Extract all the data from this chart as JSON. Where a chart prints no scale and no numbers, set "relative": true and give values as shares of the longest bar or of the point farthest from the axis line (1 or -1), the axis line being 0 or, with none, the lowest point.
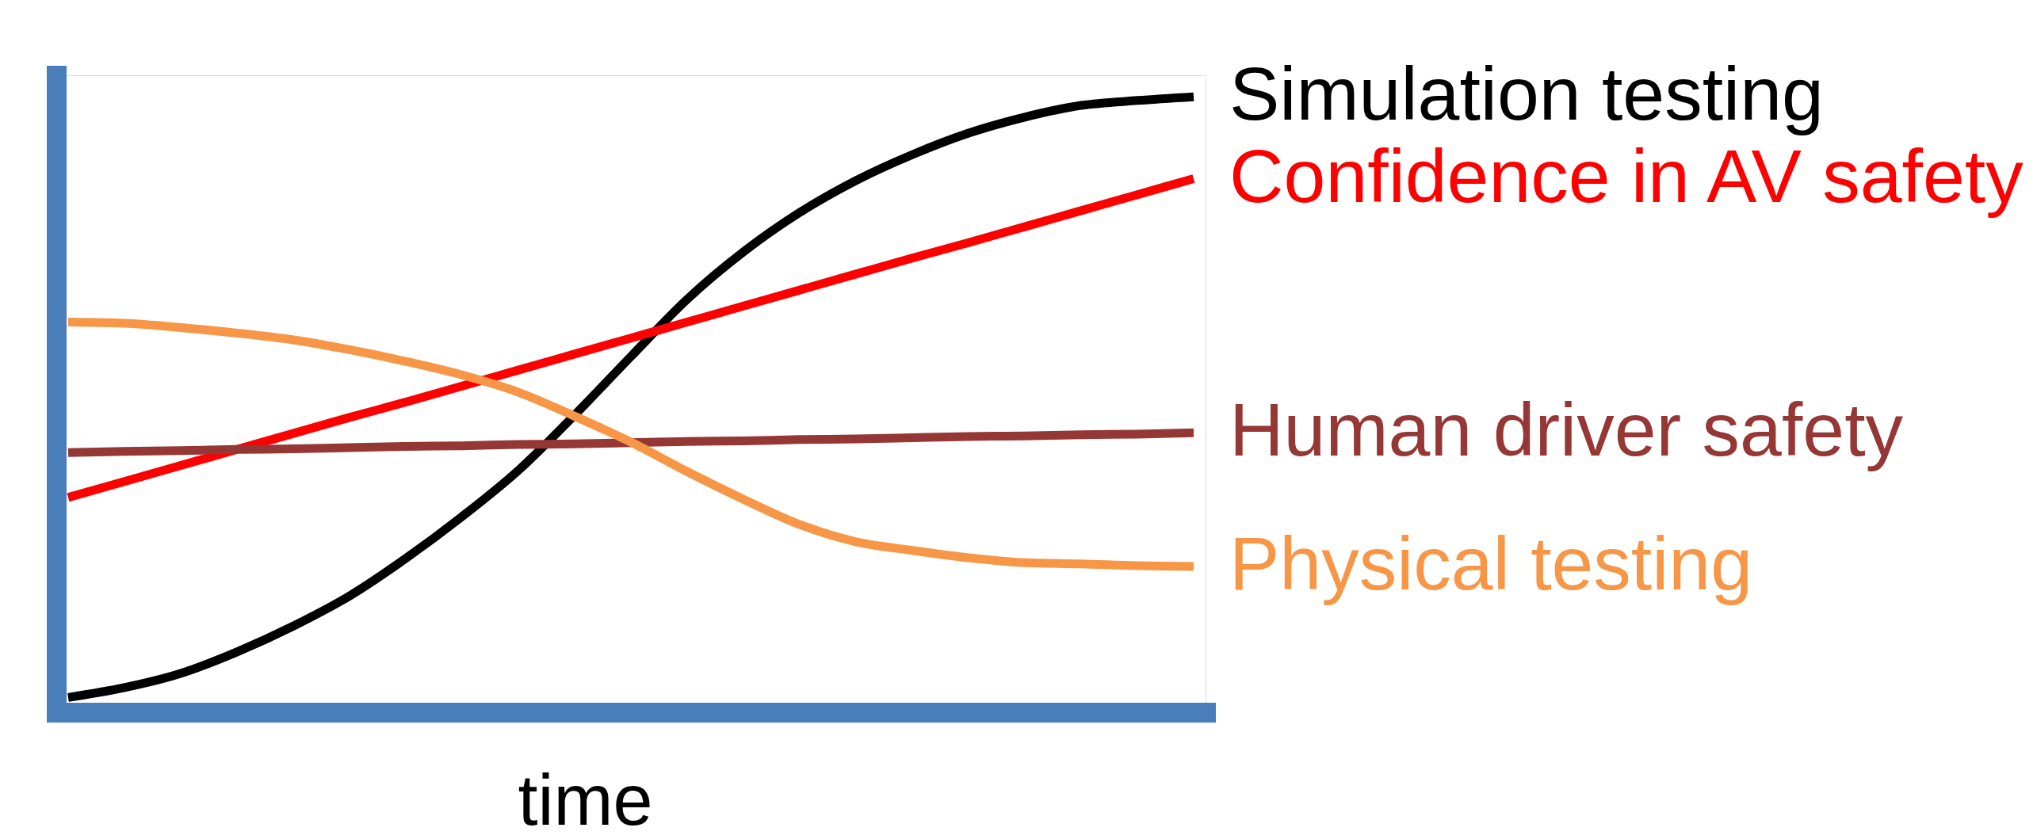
{
  "chart_data": {
    "type": "line",
    "relative": true,
    "xlabel": "time",
    "line_style": "solid",
    "categories": [
      null,
      null,
      null,
      null,
      null,
      null,
      null,
      null,
      null,
      null,
      null,
      null,
      null,
      null,
      null,
      null,
      null,
      null,
      null,
      null,
      null
    ],
    "series": [
      {
        "name": "Simulation testing",
        "color": "#000000",
        "values": [
          0.024,
          0.04,
          0.063,
          0.098,
          0.14,
          0.189,
          0.25,
          0.318,
          0.393,
          0.483,
          0.578,
          0.671,
          0.748,
          0.812,
          0.864,
          0.906,
          0.941,
          0.967,
          0.986,
          0.994,
          1.0
        ]
      },
      {
        "name": "Confidence in AV safety",
        "color": "#ff0000",
        "values": [
          0.349,
          0.375,
          0.401,
          0.427,
          0.453,
          0.479,
          0.504,
          0.53,
          0.556,
          0.582,
          0.608,
          0.634,
          0.66,
          0.686,
          0.712,
          0.738,
          0.763,
          0.789,
          0.815,
          0.841,
          0.867
        ]
      },
      {
        "name": "Human driver safety",
        "color": "#953735",
        "values": [
          0.422,
          0.424,
          0.425,
          0.427,
          0.428,
          0.43,
          0.432,
          0.433,
          0.435,
          0.436,
          0.438,
          0.44,
          0.441,
          0.443,
          0.444,
          0.446,
          0.448,
          0.449,
          0.451,
          0.452,
          0.454
        ]
      },
      {
        "name": "Physical testing",
        "color": "#f79646",
        "values": [
          0.634,
          0.632,
          0.625,
          0.616,
          0.605,
          0.589,
          0.57,
          0.548,
          0.52,
          0.481,
          0.439,
          0.391,
          0.346,
          0.305,
          0.277,
          0.263,
          0.251,
          0.243,
          0.241,
          0.238,
          0.237
        ]
      }
    ]
  }
}
